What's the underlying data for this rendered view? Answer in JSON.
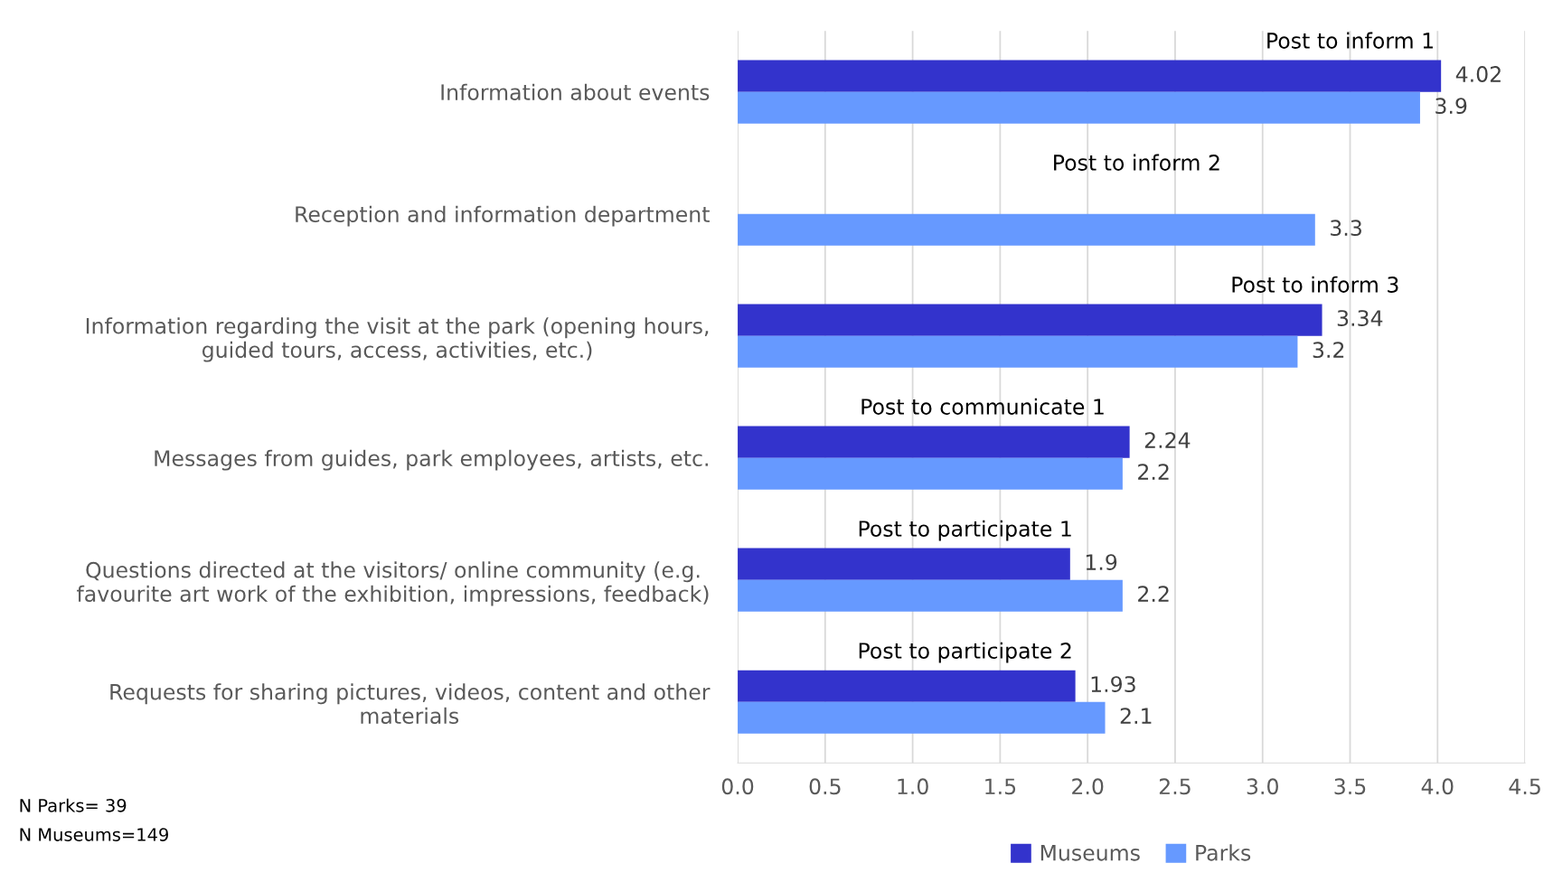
{
  "chart_data": {
    "type": "bar",
    "orientation": "horizontal",
    "categories": [
      "Information about events",
      "Reception and information department",
      "Information regarding the visit at the park (opening hours,\nguided tours, access, activities, etc.)",
      "Messages from guides, park employees, artists, etc.",
      "Questions directed at the visitors/ online community (e.g.\nfavourite art work of the exhibition, impressions, feedback)",
      "Requests for sharing pictures, videos, content and other\nmaterials"
    ],
    "series": [
      {
        "name": "Museums",
        "color": "#3333cc",
        "values": [
          4.02,
          null,
          3.34,
          2.24,
          1.9,
          1.93
        ]
      },
      {
        "name": "Parks",
        "color": "#6699ff",
        "values": [
          3.9,
          3.3,
          3.2,
          2.2,
          2.2,
          2.1
        ]
      }
    ],
    "xlim": [
      0,
      4.5
    ],
    "xticks": [
      {
        "value": 0,
        "label": "0.0"
      },
      {
        "value": 0.5,
        "label": "0.5"
      },
      {
        "value": 1,
        "label": "1.0"
      },
      {
        "value": 1.5,
        "label": "1.5"
      },
      {
        "value": 2,
        "label": "2.0"
      },
      {
        "value": 2.5,
        "label": "2.5"
      },
      {
        "value": 3,
        "label": "3.0"
      },
      {
        "value": 3.5,
        "label": "3.5"
      },
      {
        "value": 4,
        "label": "4.0"
      },
      {
        "value": 4.5,
        "label": "4.5"
      }
    ],
    "grid": "x",
    "legend": "bottom",
    "data_labels": true,
    "annotations": [
      {
        "text": "Post to inform 1",
        "x": 3.5,
        "y": "Information about events"
      },
      {
        "text": "Post to inform 2",
        "x": 2.28,
        "y": "Reception and information department"
      },
      {
        "text": "Post to inform 3",
        "x": 3.3,
        "y": "Information regarding the visit at the park (opening hours,\nguided tours, access, activities, etc.)"
      },
      {
        "text": "Post to communicate 1",
        "x": 1.4,
        "y": "Messages from guides, park employees, artists, etc."
      },
      {
        "text": "Post to participate 1",
        "x": 1.3,
        "y": "Questions directed at the visitors/ online community (e.g.\nfavourite art work of the exhibition, impressions, feedback)"
      },
      {
        "text": "Post to participate 2",
        "x": 1.3,
        "y": "Requests for sharing pictures, videos, content and other\nmaterials"
      },
      "N Parks= 39",
      "N Museums=149"
    ]
  }
}
